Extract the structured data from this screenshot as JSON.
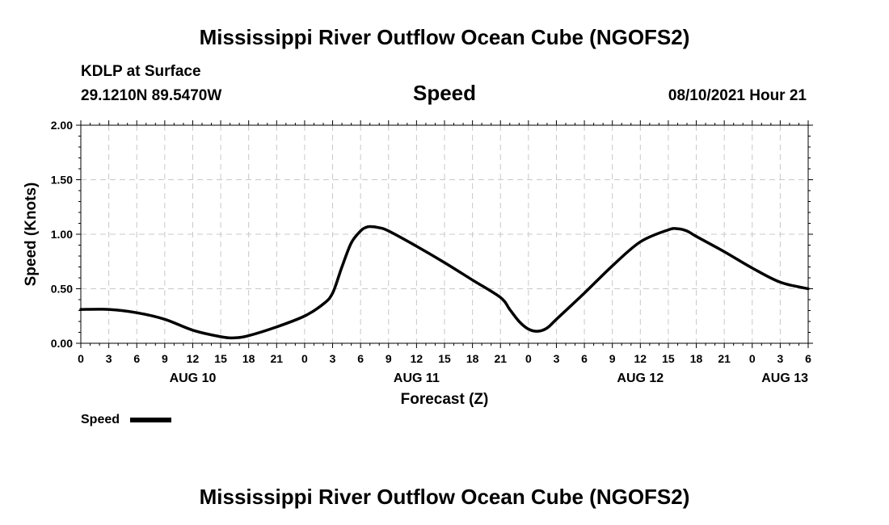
{
  "header": {
    "title": "Mississippi River Outflow Ocean Cube (NGOFS2)",
    "station": "KDLP at Surface",
    "location": "29.1210N  89.5470W",
    "variable": "Speed",
    "timestamp": "08/10/2021 Hour 21"
  },
  "footer": {
    "title": "Mississippi River Outflow Ocean Cube (NGOFS2)"
  },
  "legend": {
    "label": "Speed"
  },
  "chart_data": {
    "type": "line",
    "title": "Speed",
    "xlabel": "Forecast (Z)",
    "ylabel": "Speed (Knots)",
    "xlim": [
      0,
      78
    ],
    "ylim": [
      0,
      2
    ],
    "grid": true,
    "x_unit": "hours since AUG 10 00Z",
    "x_tick_values": [
      0,
      3,
      6,
      9,
      12,
      15,
      18,
      21,
      24,
      27,
      30,
      33,
      36,
      39,
      42,
      45,
      48,
      51,
      54,
      57,
      60,
      63,
      66,
      69,
      72,
      75,
      78
    ],
    "x_tick_labels": [
      "0",
      "3",
      "6",
      "9",
      "12",
      "15",
      "18",
      "21",
      "0",
      "3",
      "6",
      "9",
      "12",
      "15",
      "18",
      "21",
      "0",
      "3",
      "6",
      "9",
      "12",
      "15",
      "18",
      "21",
      "0",
      "3",
      "6"
    ],
    "y_tick_values": [
      0,
      0.5,
      1.0,
      1.5,
      2.0
    ],
    "y_tick_labels": [
      "0.00",
      "0.50",
      "1.00",
      "1.50",
      "2.00"
    ],
    "date_labels": [
      {
        "label": "AUG 10",
        "x": 12
      },
      {
        "label": "AUG 11",
        "x": 36
      },
      {
        "label": "AUG 12",
        "x": 60
      },
      {
        "label": "AUG 13",
        "x": 75.5
      }
    ],
    "series": [
      {
        "name": "Speed",
        "color": "#000000",
        "x": [
          0,
          3,
          6,
          9,
          12,
          15,
          16.5,
          18,
          21,
          24,
          26,
          27,
          28,
          29,
          30,
          30.5,
          31,
          32,
          33,
          36,
          39,
          42,
          45,
          46,
          47,
          48,
          49,
          50,
          51,
          54,
          57,
          60,
          63,
          64,
          65,
          66,
          69,
          72,
          75,
          78
        ],
        "values": [
          0.31,
          0.31,
          0.28,
          0.22,
          0.12,
          0.06,
          0.05,
          0.07,
          0.15,
          0.25,
          0.36,
          0.46,
          0.7,
          0.92,
          1.03,
          1.06,
          1.07,
          1.06,
          1.03,
          0.89,
          0.74,
          0.58,
          0.42,
          0.31,
          0.2,
          0.13,
          0.11,
          0.14,
          0.22,
          0.46,
          0.71,
          0.93,
          1.04,
          1.05,
          1.03,
          0.98,
          0.84,
          0.69,
          0.56,
          0.5
        ]
      }
    ]
  }
}
